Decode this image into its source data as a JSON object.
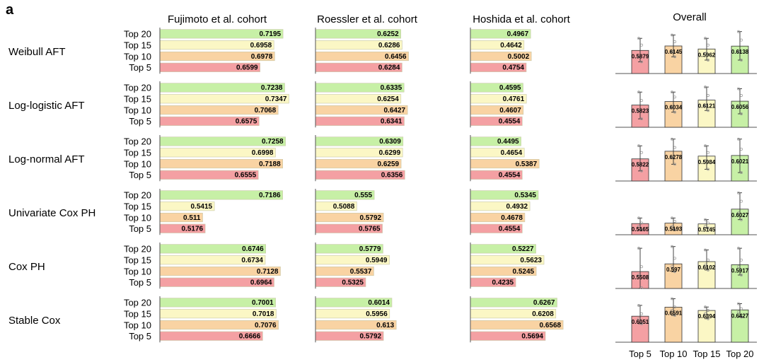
{
  "panel_label": "a",
  "colors": {
    "Top 20": "#c7f0a6",
    "Top 15": "#fbf7c5",
    "Top 10": "#f9d3a3",
    "Top 5": "#f4a0a3",
    "axis": "#555555"
  },
  "chart_data": [
    {
      "type": "bar",
      "orientation": "horizontal",
      "title": "Fujimoto et al. cohort",
      "categories": [
        "Top 20",
        "Top 15",
        "Top 10",
        "Top 5"
      ],
      "series": [
        {
          "name": "Weibull AFT",
          "values": [
            0.7195,
            0.6958,
            0.6978,
            0.6599
          ]
        },
        {
          "name": "Log-logistic AFT",
          "values": [
            0.7238,
            0.7347,
            0.7068,
            0.6575
          ]
        },
        {
          "name": "Log-normal AFT",
          "values": [
            0.7258,
            0.6998,
            0.7188,
            0.6555
          ]
        },
        {
          "name": "Univariate Cox PH",
          "values": [
            0.7186,
            0.5415,
            0.511,
            0.5176
          ]
        },
        {
          "name": "Cox PH",
          "values": [
            0.6746,
            0.6734,
            0.7128,
            0.6964
          ]
        },
        {
          "name": "Stable Cox",
          "values": [
            0.7001,
            0.7018,
            0.7076,
            0.6666
          ]
        }
      ],
      "value_labels": {
        "Weibull AFT": [
          "0.7195",
          "0.6958",
          "0.6978",
          "0.6599"
        ],
        "Log-logistic AFT": [
          "0.7238",
          "0.7347",
          "0.7068",
          "0.6575"
        ],
        "Log-normal AFT": [
          "0.7258",
          "0.6998",
          "0.7188",
          "0.6555"
        ],
        "Univariate Cox PH": [
          "0.7186",
          "0.5415",
          "0.511",
          "0.5176"
        ],
        "Cox PH": [
          "0.6746",
          "0.6734",
          "0.7128",
          "0.6964"
        ],
        "Stable Cox": [
          "0.7001",
          "0.7018",
          "0.7076",
          "0.6666"
        ]
      },
      "xlim": [
        0.4,
        0.8
      ]
    },
    {
      "type": "bar",
      "orientation": "horizontal",
      "title": "Roessler et al. cohort",
      "categories": [
        "Top 20",
        "Top 15",
        "Top 10",
        "Top 5"
      ],
      "series": [
        {
          "name": "Weibull AFT",
          "values": [
            0.6252,
            0.6286,
            0.6456,
            0.6284
          ]
        },
        {
          "name": "Log-logistic AFT",
          "values": [
            0.6335,
            0.6254,
            0.6427,
            0.6341
          ]
        },
        {
          "name": "Log-normal AFT",
          "values": [
            0.6309,
            0.6299,
            0.6259,
            0.6356
          ]
        },
        {
          "name": "Univariate Cox PH",
          "values": [
            0.555,
            0.5088,
            0.5792,
            0.5765
          ]
        },
        {
          "name": "Cox PH",
          "values": [
            0.5779,
            0.5949,
            0.5537,
            0.5325
          ]
        },
        {
          "name": "Stable Cox",
          "values": [
            0.6014,
            0.5956,
            0.613,
            0.5792
          ]
        }
      ],
      "value_labels": {
        "Weibull AFT": [
          "0.6252",
          "0.6286",
          "0.6456",
          "0.6284"
        ],
        "Log-logistic AFT": [
          "0.6335",
          "0.6254",
          "0.6427",
          "0.6341"
        ],
        "Log-normal AFT": [
          "0.6309",
          "0.6299",
          "0.6259",
          "0.6356"
        ],
        "Univariate Cox PH": [
          "0.555",
          "0.5088",
          "0.5792",
          "0.5765"
        ],
        "Cox PH": [
          "0.5779",
          "0.5949",
          "0.5537",
          "0.5325"
        ],
        "Stable Cox": [
          "0.6014",
          "0.5956",
          "0.613",
          "0.5792"
        ]
      },
      "xlim": [
        0.4,
        0.8
      ]
    },
    {
      "type": "bar",
      "orientation": "horizontal",
      "title": "Hoshida et al. cohort",
      "categories": [
        "Top 20",
        "Top 15",
        "Top 10",
        "Top 5"
      ],
      "series": [
        {
          "name": "Weibull AFT",
          "values": [
            0.4967,
            0.4642,
            0.5002,
            0.4754
          ]
        },
        {
          "name": "Log-logistic AFT",
          "values": [
            0.4595,
            0.4761,
            0.4607,
            0.4554
          ]
        },
        {
          "name": "Log-normal AFT",
          "values": [
            0.4495,
            0.4654,
            0.5387,
            0.4554
          ]
        },
        {
          "name": "Univariate Cox PH",
          "values": [
            0.5345,
            0.4932,
            0.4678,
            0.4554
          ]
        },
        {
          "name": "Cox PH",
          "values": [
            0.5227,
            0.5623,
            0.5245,
            0.4235
          ]
        },
        {
          "name": "Stable Cox",
          "values": [
            0.6267,
            0.6208,
            0.6568,
            0.5694
          ]
        }
      ],
      "value_labels": {
        "Weibull AFT": [
          "0.4967",
          "0.4642",
          "0.5002",
          "0.4754"
        ],
        "Log-logistic AFT": [
          "0.4595",
          "0.4761",
          "0.4607",
          "0.4554"
        ],
        "Log-normal AFT": [
          "0.4495",
          "0.4654",
          "0.5387",
          "0.4554"
        ],
        "Univariate Cox PH": [
          "0.5345",
          "0.4932",
          "0.4678",
          "0.4554"
        ],
        "Cox PH": [
          "0.5227",
          "0.5623",
          "0.5245",
          "0.4235"
        ],
        "Stable Cox": [
          "0.6267",
          "0.6208",
          "0.6568",
          "0.5694"
        ]
      },
      "xlim": [
        0.2,
        0.7
      ]
    },
    {
      "type": "bar",
      "title": "Overall",
      "categories": [
        "Top 5",
        "Top 10",
        "Top 15",
        "Top 20"
      ],
      "error_bars": true,
      "series": [
        {
          "name": "Weibull AFT",
          "values": [
            0.5879,
            0.6145,
            0.5962,
            0.6138
          ]
        },
        {
          "name": "Log-logistic AFT",
          "values": [
            0.5823,
            0.6034,
            0.6121,
            0.6056
          ]
        },
        {
          "name": "Log-normal AFT",
          "values": [
            0.5822,
            0.6278,
            0.5984,
            0.6021
          ]
        },
        {
          "name": "Univariate Cox PH",
          "values": [
            0.5165,
            0.5193,
            0.5145,
            0.6027
          ]
        },
        {
          "name": "Cox PH",
          "values": [
            0.5508,
            0.597,
            0.6102,
            0.5917
          ]
        },
        {
          "name": "Stable Cox",
          "values": [
            0.6051,
            0.6591,
            0.6394,
            0.6427
          ]
        }
      ],
      "value_labels": {
        "Weibull AFT": [
          "0.5879",
          "0.6145",
          "0.5962",
          "0.6138"
        ],
        "Log-logistic AFT": [
          "0.5823",
          "0.6034",
          "0.6121",
          "0.6056"
        ],
        "Log-normal AFT": [
          "0.5822",
          "0.6278",
          "0.5984",
          "0.6021"
        ],
        "Univariate Cox PH": [
          "0.5165",
          "0.5193",
          "0.5145",
          "0.6027"
        ],
        "Cox PH": [
          "0.5508",
          "0.597",
          "0.6102",
          "0.5917"
        ],
        "Stable Cox": [
          "0.6051",
          "0.6591",
          "0.6394",
          "0.6427"
        ]
      },
      "ylim": [
        0.45,
        0.72
      ],
      "points": {
        "Weibull AFT": [
          [
            0.66,
            0.62,
            0.55,
            0.52
          ],
          [
            0.68,
            0.64,
            0.58,
            0.55
          ],
          [
            0.66,
            0.62,
            0.57,
            0.53
          ],
          [
            0.7,
            0.65,
            0.58,
            0.53
          ]
        ],
        "Log-logistic AFT": [
          [
            0.66,
            0.61,
            0.55,
            0.5
          ],
          [
            0.66,
            0.63,
            0.57,
            0.54
          ],
          [
            0.69,
            0.64,
            0.58,
            0.55
          ],
          [
            0.68,
            0.64,
            0.57,
            0.53
          ]
        ],
        "Log-normal AFT": [
          [
            0.66,
            0.62,
            0.55,
            0.51
          ],
          [
            0.7,
            0.65,
            0.59,
            0.55
          ],
          [
            0.66,
            0.62,
            0.57,
            0.52
          ],
          [
            0.7,
            0.64,
            0.56,
            0.5
          ]
        ],
        "Univariate Cox PH": [
          [
            0.55,
            0.52,
            0.5,
            0.48
          ],
          [
            0.55,
            0.53,
            0.5,
            0.48
          ],
          [
            0.54,
            0.52,
            0.5,
            0.49
          ],
          [
            0.7,
            0.65,
            0.58,
            0.54
          ]
        ],
        "Cox PH": [
          [
            0.69,
            0.58,
            0.53,
            0.42
          ],
          [
            0.7,
            0.63,
            0.58,
            0.55
          ],
          [
            0.68,
            0.62,
            0.59,
            0.56
          ],
          [
            0.69,
            0.62,
            0.58,
            0.53
          ]
        ],
        "Stable Cox": [
          [
            0.67,
            0.62,
            0.59,
            0.56
          ],
          [
            0.71,
            0.66,
            0.64,
            0.61
          ],
          [
            0.66,
            0.64,
            0.62,
            0.59
          ],
          [
            0.68,
            0.65,
            0.63,
            0.6
          ]
        ]
      }
    }
  ]
}
